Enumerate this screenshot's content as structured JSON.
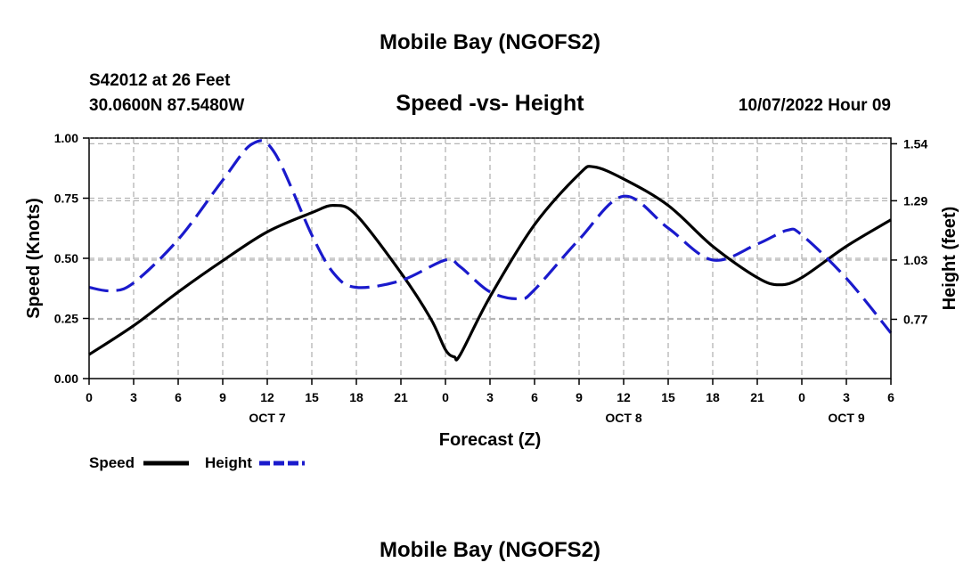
{
  "page": {
    "top_title": "Mobile Bay (NGOFS2)",
    "bottom_title": "Mobile Bay (NGOFS2)",
    "station": "S42012 at 26 Feet",
    "coords": "30.0600N  87.5480W",
    "chart_title": "Speed -vs- Height",
    "datetime": "10/07/2022 Hour 09"
  },
  "chart_data": {
    "type": "line",
    "title": "Speed -vs- Height",
    "xlabel": "Forecast (Z)",
    "ylabel": "Speed (Knots)",
    "y2label": "Height (feet)",
    "xlim": [
      0,
      54
    ],
    "ylim": [
      0,
      1.0
    ],
    "y2lim": [
      0.51,
      1.565
    ],
    "x_ticks": [
      0,
      3,
      6,
      9,
      12,
      15,
      18,
      21,
      24,
      27,
      30,
      33,
      36,
      39,
      42,
      45,
      48,
      51,
      54
    ],
    "x_tick_labels": [
      "0",
      "3",
      "6",
      "9",
      "12",
      "15",
      "18",
      "21",
      "0",
      "3",
      "6",
      "9",
      "12",
      "15",
      "18",
      "21",
      "0",
      "3",
      "6"
    ],
    "day_labels": [
      {
        "x": 12,
        "label": "OCT 7"
      },
      {
        "x": 36,
        "label": "OCT 8"
      },
      {
        "x": 51,
        "label": "OCT 9"
      }
    ],
    "y_ticks": [
      0,
      0.25,
      0.5,
      0.75,
      1.0
    ],
    "y_tick_labels": [
      "0.00",
      "0.25",
      "0.50",
      "0.75",
      "1.00"
    ],
    "y2_ticks": [
      0.77,
      1.03,
      1.29,
      1.54
    ],
    "y2_tick_labels": [
      "0.77",
      "1.03",
      "1.29",
      "1.54"
    ],
    "grid": true,
    "legend_position": "bottom-left",
    "series": [
      {
        "name": "Speed",
        "axis": "left",
        "color": "#000000",
        "dash": "solid",
        "points": [
          [
            0,
            0.1
          ],
          [
            3,
            0.22
          ],
          [
            6,
            0.36
          ],
          [
            9,
            0.49
          ],
          [
            12,
            0.61
          ],
          [
            15,
            0.69
          ],
          [
            16.5,
            0.72
          ],
          [
            18,
            0.68
          ],
          [
            21,
            0.44
          ],
          [
            23,
            0.25
          ],
          [
            24,
            0.12
          ],
          [
            24.6,
            0.09
          ],
          [
            25,
            0.1
          ],
          [
            27,
            0.34
          ],
          [
            30,
            0.64
          ],
          [
            33,
            0.85
          ],
          [
            34,
            0.88
          ],
          [
            36,
            0.83
          ],
          [
            39,
            0.72
          ],
          [
            42,
            0.55
          ],
          [
            45,
            0.42
          ],
          [
            46.5,
            0.39
          ],
          [
            48,
            0.42
          ],
          [
            51,
            0.55
          ],
          [
            54,
            0.66
          ]
        ]
      },
      {
        "name": "Height",
        "axis": "right",
        "color": "#1a1acc",
        "dash": "dashed",
        "points": [
          [
            0,
            0.91
          ],
          [
            1.5,
            0.895
          ],
          [
            3,
            0.93
          ],
          [
            6,
            1.12
          ],
          [
            9,
            1.38
          ],
          [
            11,
            1.54
          ],
          [
            12.5,
            1.5
          ],
          [
            15,
            1.14
          ],
          [
            16.5,
            0.97
          ],
          [
            18,
            0.91
          ],
          [
            21,
            0.94
          ],
          [
            24,
            1.03
          ],
          [
            25,
            1.0
          ],
          [
            27,
            0.89
          ],
          [
            29,
            0.86
          ],
          [
            30,
            0.9
          ],
          [
            33,
            1.12
          ],
          [
            36,
            1.31
          ],
          [
            39,
            1.17
          ],
          [
            42,
            1.03
          ],
          [
            45,
            1.1
          ],
          [
            47,
            1.16
          ],
          [
            48,
            1.14
          ],
          [
            51,
            0.95
          ],
          [
            54,
            0.71
          ]
        ]
      }
    ]
  }
}
